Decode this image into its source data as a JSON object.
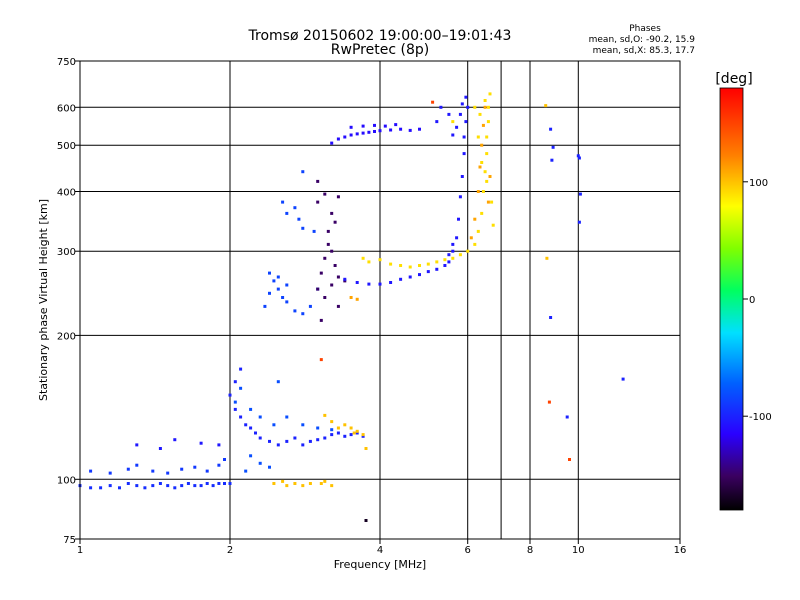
{
  "chart_data": {
    "type": "scatter",
    "title": "Tromsø 20150602 19:00:00–19:01:43",
    "subtitle": "RwPretec (8p)",
    "xlabel": "Frequency [MHz]",
    "ylabel": "Stationary phase Virtual Height [km]",
    "x_scale": "log",
    "y_scale": "log",
    "xlim": [
      1,
      16
    ],
    "ylim": [
      75,
      750
    ],
    "x_ticks": [
      1,
      2,
      4,
      6,
      8,
      10,
      16
    ],
    "x_minor_lines": [
      7
    ],
    "y_ticks": [
      75,
      100,
      200,
      300,
      400,
      500,
      600,
      750
    ],
    "grid": true,
    "phases_box": {
      "title": "Phases",
      "line_o": "mean, sd,O: -90.2, 15.9",
      "line_x": "mean, sd,X: 85.3, 17.7"
    },
    "colorbar": {
      "label": "[deg]",
      "range": [
        -180,
        180
      ],
      "ticks": [
        100,
        0,
        -100
      ]
    },
    "series": [
      {
        "phase": -95,
        "points": [
          [
            1.0,
            97
          ],
          [
            1.05,
            96
          ],
          [
            1.1,
            96
          ],
          [
            1.15,
            97
          ],
          [
            1.2,
            96
          ],
          [
            1.25,
            98
          ],
          [
            1.3,
            97
          ],
          [
            1.35,
            96
          ],
          [
            1.4,
            97
          ],
          [
            1.45,
            98
          ],
          [
            1.5,
            97
          ],
          [
            1.55,
            96
          ],
          [
            1.6,
            97
          ],
          [
            1.65,
            98
          ],
          [
            1.7,
            97
          ],
          [
            1.75,
            97
          ],
          [
            1.8,
            98
          ],
          [
            1.85,
            97
          ],
          [
            1.9,
            98
          ],
          [
            1.95,
            98
          ],
          [
            2.0,
            98
          ]
        ]
      },
      {
        "phase": -90,
        "points": [
          [
            1.05,
            104
          ],
          [
            1.15,
            103
          ],
          [
            1.25,
            105
          ],
          [
            1.3,
            107
          ],
          [
            1.4,
            104
          ],
          [
            1.5,
            103
          ],
          [
            1.6,
            105
          ],
          [
            1.7,
            106
          ],
          [
            1.8,
            104
          ],
          [
            1.9,
            107
          ],
          [
            1.95,
            110
          ]
        ]
      },
      {
        "phase": -105,
        "points": [
          [
            1.3,
            118
          ],
          [
            1.45,
            116
          ],
          [
            1.55,
            121
          ],
          [
            1.75,
            119
          ],
          [
            1.9,
            118
          ]
        ]
      },
      {
        "phase": -100,
        "points": [
          [
            2.0,
            150
          ],
          [
            2.05,
            160
          ],
          [
            2.05,
            140
          ],
          [
            2.1,
            170
          ],
          [
            2.1,
            135
          ],
          [
            2.15,
            130
          ],
          [
            2.2,
            128
          ],
          [
            2.25,
            125
          ],
          [
            2.3,
            122
          ],
          [
            2.4,
            120
          ],
          [
            2.5,
            118
          ],
          [
            2.6,
            120
          ],
          [
            2.7,
            122
          ],
          [
            2.8,
            118
          ],
          [
            2.9,
            120
          ],
          [
            3.0,
            121
          ],
          [
            3.1,
            122
          ],
          [
            3.2,
            124
          ],
          [
            3.3,
            125
          ],
          [
            3.4,
            123
          ],
          [
            3.5,
            124
          ],
          [
            3.6,
            125
          ],
          [
            3.7,
            123
          ]
        ]
      },
      {
        "phase": -80,
        "points": [
          [
            2.05,
            145
          ],
          [
            2.1,
            155
          ],
          [
            2.2,
            140
          ],
          [
            2.3,
            135
          ],
          [
            2.45,
            130
          ],
          [
            2.6,
            135
          ],
          [
            2.8,
            130
          ],
          [
            3.0,
            128
          ],
          [
            3.2,
            127
          ],
          [
            2.5,
            160
          ],
          [
            2.2,
            112
          ],
          [
            2.3,
            108
          ],
          [
            2.4,
            106
          ],
          [
            2.15,
            104
          ]
        ]
      },
      {
        "phase": 100,
        "points": [
          [
            2.45,
            98
          ],
          [
            2.55,
            99
          ],
          [
            2.6,
            97
          ],
          [
            2.7,
            98
          ],
          [
            2.8,
            97
          ],
          [
            2.9,
            98
          ],
          [
            3.05,
            98
          ],
          [
            3.1,
            99
          ],
          [
            3.2,
            97
          ],
          [
            3.1,
            136
          ],
          [
            3.2,
            132
          ],
          [
            3.3,
            128
          ],
          [
            3.4,
            130
          ],
          [
            3.5,
            128
          ],
          [
            3.6,
            126
          ],
          [
            3.55,
            125
          ],
          [
            3.7,
            124
          ],
          [
            3.75,
            116
          ]
        ]
      },
      {
        "phase": -85,
        "points": [
          [
            2.35,
            230
          ],
          [
            2.4,
            245
          ],
          [
            2.45,
            260
          ],
          [
            2.5,
            250
          ],
          [
            2.55,
            240
          ],
          [
            2.6,
            235
          ],
          [
            2.7,
            225
          ],
          [
            2.8,
            222
          ],
          [
            2.9,
            230
          ],
          [
            3.0,
            250
          ],
          [
            2.6,
            255
          ],
          [
            2.4,
            270
          ],
          [
            2.5,
            265
          ],
          [
            2.55,
            380
          ],
          [
            2.6,
            360
          ],
          [
            2.7,
            370
          ],
          [
            2.75,
            350
          ],
          [
            2.8,
            335
          ],
          [
            2.8,
            440
          ],
          [
            2.95,
            330
          ]
        ]
      },
      {
        "phase": -150,
        "points": [
          [
            3.0,
            250
          ],
          [
            3.05,
            270
          ],
          [
            3.1,
            290
          ],
          [
            3.15,
            310
          ],
          [
            3.2,
            300
          ],
          [
            3.25,
            280
          ],
          [
            3.3,
            265
          ],
          [
            3.4,
            260
          ],
          [
            3.1,
            240
          ],
          [
            3.2,
            255
          ],
          [
            3.3,
            230
          ],
          [
            3.05,
            215
          ],
          [
            3.15,
            330
          ],
          [
            3.25,
            345
          ],
          [
            3.0,
            380
          ],
          [
            3.1,
            395
          ],
          [
            3.0,
            420
          ],
          [
            3.2,
            360
          ],
          [
            3.3,
            390
          ]
        ]
      },
      {
        "phase": -110,
        "points": [
          [
            3.2,
            505
          ],
          [
            3.3,
            515
          ],
          [
            3.4,
            520
          ],
          [
            3.5,
            525
          ],
          [
            3.6,
            528
          ],
          [
            3.7,
            530
          ],
          [
            3.8,
            532
          ],
          [
            3.9,
            534
          ],
          [
            4.0,
            536
          ],
          [
            4.2,
            538
          ],
          [
            4.4,
            540
          ],
          [
            4.6,
            537
          ],
          [
            4.8,
            540
          ],
          [
            3.5,
            545
          ],
          [
            3.7,
            548
          ],
          [
            3.9,
            550
          ],
          [
            4.1,
            548
          ],
          [
            4.3,
            552
          ]
        ]
      },
      {
        "phase": -105,
        "points": [
          [
            3.4,
            262
          ],
          [
            3.6,
            258
          ],
          [
            3.8,
            256
          ],
          [
            4.0,
            256
          ],
          [
            4.2,
            258
          ],
          [
            4.4,
            262
          ],
          [
            4.6,
            265
          ],
          [
            4.8,
            268
          ],
          [
            5.0,
            272
          ],
          [
            5.2,
            275
          ],
          [
            5.4,
            280
          ],
          [
            5.5,
            285
          ],
          [
            5.6,
            300
          ],
          [
            5.7,
            320
          ],
          [
            5.75,
            350
          ],
          [
            5.8,
            390
          ],
          [
            5.85,
            430
          ],
          [
            5.9,
            480
          ],
          [
            5.9,
            520
          ],
          [
            5.95,
            560
          ],
          [
            6.0,
            600
          ],
          [
            5.95,
            630
          ],
          [
            5.85,
            610
          ],
          [
            5.8,
            580
          ],
          [
            5.7,
            545
          ],
          [
            5.6,
            525
          ],
          [
            5.5,
            580
          ],
          [
            5.3,
            600
          ],
          [
            5.2,
            560
          ],
          [
            5.6,
            310
          ],
          [
            5.5,
            295
          ]
        ]
      },
      {
        "phase": 90,
        "points": [
          [
            3.7,
            290
          ],
          [
            3.8,
            285
          ],
          [
            4.0,
            288
          ],
          [
            4.2,
            282
          ],
          [
            4.4,
            280
          ],
          [
            4.6,
            278
          ],
          [
            4.8,
            280
          ],
          [
            5.0,
            282
          ],
          [
            5.2,
            285
          ],
          [
            5.4,
            288
          ],
          [
            5.6,
            290
          ],
          [
            5.8,
            295
          ],
          [
            6.0,
            300
          ],
          [
            6.2,
            310
          ],
          [
            6.3,
            330
          ],
          [
            6.4,
            360
          ],
          [
            6.45,
            400
          ],
          [
            6.5,
            440
          ],
          [
            6.55,
            480
          ],
          [
            6.55,
            520
          ],
          [
            6.6,
            560
          ],
          [
            6.6,
            600
          ],
          [
            6.65,
            640
          ],
          [
            6.5,
            620
          ],
          [
            6.35,
            580
          ],
          [
            6.3,
            520
          ],
          [
            6.4,
            460
          ],
          [
            6.55,
            420
          ],
          [
            6.7,
            380
          ],
          [
            6.75,
            340
          ],
          [
            6.2,
            600
          ],
          [
            5.6,
            560
          ]
        ]
      },
      {
        "phase": 110,
        "points": [
          [
            6.1,
            320
          ],
          [
            6.2,
            350
          ],
          [
            6.3,
            400
          ],
          [
            6.35,
            450
          ],
          [
            6.4,
            500
          ],
          [
            6.45,
            550
          ],
          [
            6.5,
            600
          ],
          [
            6.6,
            380
          ],
          [
            6.65,
            430
          ],
          [
            3.5,
            240
          ],
          [
            3.6,
            238
          ]
        ]
      },
      {
        "phase": -100,
        "points": [
          [
            8.8,
            540
          ],
          [
            8.9,
            495
          ],
          [
            8.85,
            465
          ],
          [
            8.8,
            218
          ],
          [
            9.5,
            135
          ],
          [
            10.0,
            475
          ],
          [
            10.05,
            470
          ],
          [
            10.05,
            345
          ],
          [
            10.1,
            395
          ],
          [
            12.3,
            162
          ]
        ]
      },
      {
        "phase": 150,
        "points": [
          [
            5.1,
            615
          ],
          [
            8.75,
            145
          ],
          [
            3.05,
            178
          ],
          [
            9.6,
            110
          ]
        ]
      },
      {
        "phase": 100,
        "points": [
          [
            8.6,
            605
          ],
          [
            8.65,
            290
          ]
        ]
      },
      {
        "phase": -170,
        "points": [
          [
            3.75,
            82
          ]
        ]
      }
    ]
  }
}
